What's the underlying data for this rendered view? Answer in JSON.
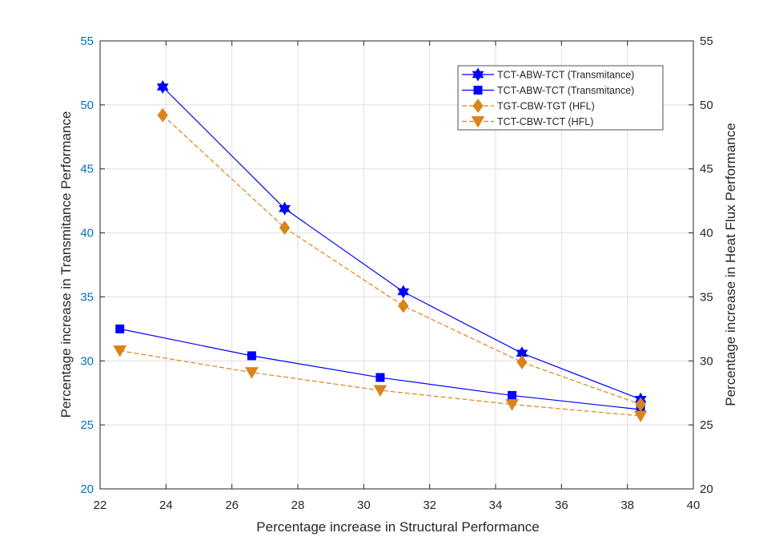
{
  "chart_data": {
    "type": "line",
    "xlabel": "Percentage increase in Structural Performance",
    "ylabel_left": "Percentage increase in Transmitance Performance",
    "ylabel_right": "Percentage increase in Heat Flux Performance",
    "xlim": [
      22,
      40
    ],
    "ylim_left": [
      20,
      55
    ],
    "ylim_right": [
      20,
      55
    ],
    "xticks": [
      22,
      24,
      26,
      28,
      30,
      32,
      34,
      36,
      38,
      40
    ],
    "yticks": [
      20,
      25,
      30,
      35,
      40,
      45,
      50,
      55
    ],
    "grid": true,
    "legend_position": "top-right",
    "series": [
      {
        "name": "TCT-ABW-TCT (Transmitance)",
        "axis": "left",
        "color": "#0000ff",
        "line_style": "solid",
        "marker": "hexagram",
        "x": [
          23.9,
          27.6,
          31.2,
          34.8,
          38.4
        ],
        "y": [
          51.4,
          41.9,
          35.4,
          30.6,
          27.0
        ]
      },
      {
        "name": "TCT-ABW-TCT (Transmitance)",
        "axis": "left",
        "color": "#0000ff",
        "line_style": "solid",
        "marker": "square",
        "x": [
          22.6,
          26.6,
          30.5,
          34.5,
          38.4
        ],
        "y": [
          32.5,
          30.4,
          28.7,
          27.3,
          26.2
        ]
      },
      {
        "name": "TGT-CBW-TGT (HFL)",
        "axis": "right",
        "color": "#d9841a",
        "line_style": "dashed",
        "marker": "diamond",
        "x": [
          23.9,
          27.6,
          31.2,
          34.8,
          38.4
        ],
        "y": [
          49.2,
          40.4,
          34.3,
          29.9,
          26.6
        ]
      },
      {
        "name": "TCT-CBW-TCT (HFL)",
        "axis": "right",
        "color": "#d9841a",
        "line_style": "dashed",
        "marker": "triangle-down",
        "x": [
          22.6,
          26.6,
          30.5,
          34.5,
          38.4
        ],
        "y": [
          30.8,
          29.1,
          27.7,
          26.6,
          25.7
        ]
      }
    ]
  },
  "colors": {
    "left_axis": "#0072bd",
    "right_axis": "#262626",
    "grid": "#dfdfdf",
    "axes_box": "#262626"
  }
}
